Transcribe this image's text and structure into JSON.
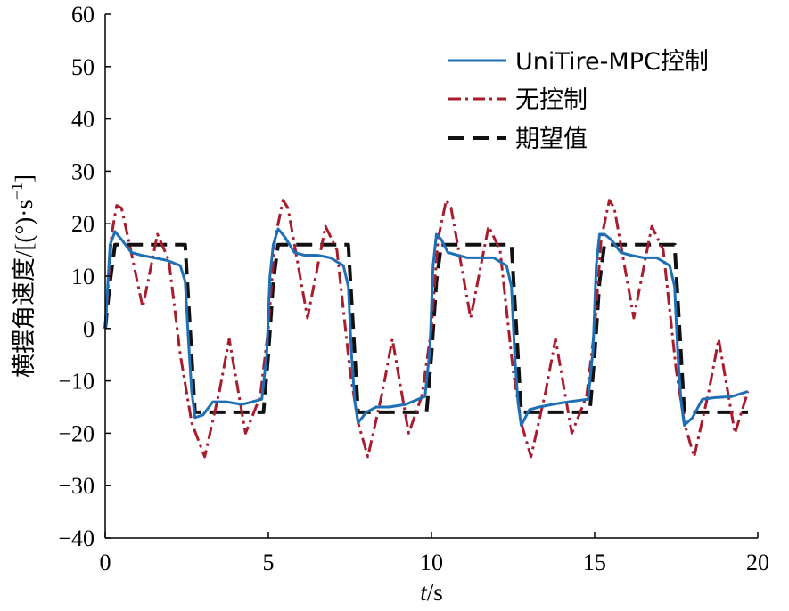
{
  "chart_data": {
    "type": "line",
    "title": "",
    "xlabel_italic": "t",
    "xlabel_rest": "/s",
    "ylabel": "横摆角速度/[(°)·s",
    "ylabel_sup": "−1",
    "ylabel_close": "]",
    "xlim": [
      0,
      20
    ],
    "ylim": [
      -40,
      60
    ],
    "x_ticks": [
      0,
      5,
      10,
      15,
      20
    ],
    "x_tick_labels": [
      "0",
      "5",
      "10",
      "15",
      "20"
    ],
    "y_ticks": [
      60,
      50,
      40,
      30,
      20,
      10,
      0,
      -10,
      -20,
      -30,
      -40
    ],
    "y_tick_labels": [
      "60",
      "50",
      "40",
      "30",
      "20",
      "10",
      "0",
      "−10",
      "−20",
      "−30",
      "−40"
    ],
    "grid": false,
    "legend_position": "top-right",
    "series": [
      {
        "name": "UniTire-MPC控制",
        "color": "#1f6fb5",
        "style": "solid",
        "x": [
          0,
          0.15,
          0.3,
          0.5,
          0.8,
          1.1,
          1.5,
          1.9,
          2.3,
          2.45,
          2.55,
          2.65,
          2.75,
          3.0,
          3.3,
          3.7,
          4.2,
          4.8,
          4.95,
          5.05,
          5.15,
          5.3,
          5.5,
          5.8,
          6.1,
          6.5,
          6.9,
          7.3,
          7.45,
          7.55,
          7.65,
          7.75,
          8.0,
          8.3,
          8.7,
          9.2,
          9.8,
          9.95,
          10.05,
          10.15,
          10.3,
          10.5,
          10.8,
          11.1,
          11.5,
          11.9,
          12.3,
          12.45,
          12.55,
          12.65,
          12.75,
          13.0,
          13.3,
          13.7,
          14.2,
          14.8,
          14.95,
          15.05,
          15.15,
          15.3,
          15.5,
          15.8,
          16.1,
          16.5,
          16.9,
          17.3,
          17.45,
          17.55,
          17.65,
          17.75,
          18.0,
          18.3,
          18.7,
          19.2,
          19.7
        ],
        "y": [
          0,
          16,
          18.5,
          17,
          14.5,
          14,
          13.5,
          13,
          12,
          9,
          -2,
          -12,
          -17,
          -16.5,
          -14,
          -14,
          -14.5,
          -13.5,
          -5,
          10,
          16,
          19,
          17.5,
          14.5,
          14,
          14,
          13.5,
          12,
          8,
          -5,
          -14,
          -18,
          -16,
          -15,
          -15,
          -14.5,
          -13,
          -4,
          12,
          18,
          17,
          14.5,
          14,
          13.5,
          13.5,
          13.5,
          12,
          8,
          -5,
          -14,
          -18.5,
          -15.5,
          -15,
          -14.5,
          -14,
          -13.5,
          -4,
          12,
          18,
          18,
          17,
          14.5,
          14,
          13.5,
          13.5,
          12,
          8,
          -5,
          -14,
          -18.5,
          -17,
          -13.5,
          -13.2,
          -13,
          -12
        ]
      },
      {
        "name": "无控制",
        "color": "#a81c2e",
        "style": "dashdot",
        "x": [
          0,
          0.2,
          0.35,
          0.5,
          0.75,
          1.15,
          1.6,
          1.95,
          2.3,
          2.65,
          3.05,
          3.5,
          3.8,
          4.3,
          4.75,
          5.0,
          5.2,
          5.45,
          5.6,
          5.8,
          6.2,
          6.75,
          7.1,
          7.5,
          7.75,
          8.05,
          8.5,
          8.8,
          9.3,
          9.7,
          10.0,
          10.2,
          10.45,
          10.6,
          10.8,
          11.2,
          11.75,
          12.1,
          12.5,
          12.75,
          13.05,
          13.5,
          13.8,
          14.3,
          14.75,
          15.0,
          15.2,
          15.45,
          15.6,
          15.8,
          16.2,
          16.75,
          17.1,
          17.5,
          17.75,
          18.05,
          18.5,
          18.8,
          19.3,
          19.7
        ],
        "y": [
          0,
          18,
          23.5,
          23,
          16,
          4,
          18,
          13,
          -5,
          -18,
          -24.5,
          -12,
          -2,
          -20,
          -13,
          0,
          17,
          24.5,
          23,
          16,
          2,
          19.5,
          15,
          -8,
          -18,
          -24.5,
          -12,
          -2,
          -20,
          -13,
          0,
          17,
          24.5,
          23,
          16,
          2,
          19.5,
          15,
          -8,
          -18,
          -24.5,
          -12,
          -2,
          -20,
          -13,
          0,
          17,
          24.5,
          23,
          16,
          2,
          19.5,
          15,
          -8,
          -18,
          -24.5,
          -12,
          -2,
          -20,
          -12
        ]
      },
      {
        "name": "期望值",
        "color": "#111111",
        "style": "dashed",
        "x": [
          0,
          0.15,
          0.3,
          2.45,
          2.6,
          2.75,
          4.85,
          5.0,
          5.15,
          5.3,
          7.45,
          7.6,
          7.75,
          9.85,
          10.0,
          10.15,
          10.3,
          12.45,
          12.6,
          12.75,
          14.85,
          15.0,
          15.15,
          15.3,
          17.45,
          17.6,
          17.75,
          19.7
        ],
        "y": [
          0,
          9,
          16,
          16,
          0,
          -16,
          -16,
          -5,
          9,
          16,
          16,
          0,
          -16,
          -16,
          -5,
          9,
          16,
          16,
          0,
          -16,
          -16,
          -5,
          9,
          16,
          16,
          0,
          -16,
          -16
        ]
      }
    ]
  }
}
